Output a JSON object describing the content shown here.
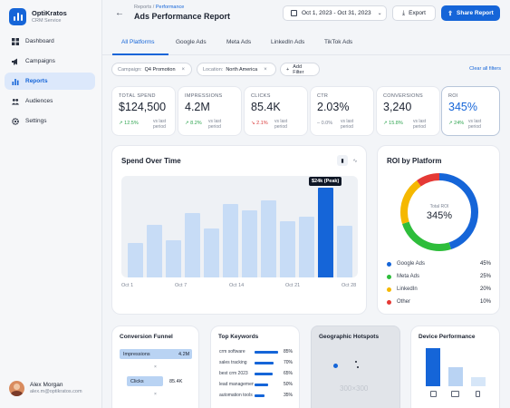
{
  "app": {
    "name": "OptiKratos",
    "subtitle": "CRM Service"
  },
  "sidebar": {
    "items": [
      {
        "label": "Dashboard",
        "icon": "dashboard-icon"
      },
      {
        "label": "Campaigns",
        "icon": "megaphone-icon"
      },
      {
        "label": "Reports",
        "icon": "bar-chart-icon",
        "active": true
      },
      {
        "label": "Audiences",
        "icon": "users-icon"
      },
      {
        "label": "Settings",
        "icon": "gear-icon"
      }
    ]
  },
  "user": {
    "name": "Alex Morgan",
    "email": "alex.m@optikratos.com"
  },
  "header": {
    "breadcrumb_root": "Reports",
    "breadcrumb_sep": "/",
    "breadcrumb_current": "Performance",
    "title": "Ads Performance Report",
    "date_range": "Oct 1, 2023 - Oct 31, 2023",
    "export_label": "Export",
    "share_label": "Share Report"
  },
  "tabs": [
    "All Platforms",
    "Google Ads",
    "Meta Ads",
    "LinkedIn Ads",
    "TikTok Ads"
  ],
  "filters": {
    "campaign_key": "Campaign:",
    "campaign_value": "Q4 Promotion",
    "location_key": "Location:",
    "location_value": "North America",
    "add_label": "Add Filter",
    "clear_label": "Clear all filters"
  },
  "kpis": [
    {
      "label": "TOTAL SPEND",
      "value": "$124,500",
      "delta": "12.5%",
      "trend": "up",
      "period": "vs last period"
    },
    {
      "label": "IMPRESSIONS",
      "value": "4.2M",
      "delta": "8.2%",
      "trend": "up",
      "period": "vs last period"
    },
    {
      "label": "CLICKS",
      "value": "85.4K",
      "delta": "2.1%",
      "trend": "down",
      "period": "vs last period"
    },
    {
      "label": "CTR",
      "value": "2.03%",
      "delta": "0.0%",
      "trend": "flat",
      "period": "vs last period"
    },
    {
      "label": "CONVERSIONS",
      "value": "3,240",
      "delta": "15.8%",
      "trend": "up",
      "period": "vs last period"
    },
    {
      "label": "ROI",
      "value": "345%",
      "delta": "24%",
      "trend": "up",
      "period": "vs last period"
    }
  ],
  "spend_panel": {
    "title": "Spend Over Time",
    "tooltip": "$24k (Peak)"
  },
  "chart_data": [
    {
      "type": "bar",
      "title": "Spend Over Time",
      "xticks": [
        "Oct 1",
        "Oct 7",
        "Oct 14",
        "Oct 21",
        "Oct 28"
      ],
      "values_relative_height": [
        0.34,
        0.52,
        0.37,
        0.63,
        0.48,
        0.72,
        0.66,
        0.76,
        0.55,
        0.6,
        0.88,
        0.51
      ],
      "peak_index": 10,
      "peak_label": "$24k (Peak)",
      "colors": {
        "bar": "#c7dcf6",
        "peak": "#1565d8"
      }
    },
    {
      "type": "pie",
      "title": "ROI by Platform",
      "center_label": "Total ROI",
      "center_value": "345%",
      "slices": [
        {
          "name": "Google Ads",
          "value": 45,
          "color": "#1565d8"
        },
        {
          "name": "Meta Ads",
          "value": 25,
          "color": "#2ebd3b"
        },
        {
          "name": "LinkedIn",
          "value": 20,
          "color": "#f5b800"
        },
        {
          "name": "Other",
          "value": 10,
          "color": "#e53935"
        }
      ]
    }
  ],
  "roi_panel": {
    "title": "ROI by Platform",
    "center_label": "Total ROI",
    "center_value": "345%",
    "legend": [
      {
        "name": "Google Ads",
        "pct": "45%"
      },
      {
        "name": "Meta Ads",
        "pct": "25%"
      },
      {
        "name": "LinkedIn",
        "pct": "20%"
      },
      {
        "name": "Other",
        "pct": "10%"
      }
    ]
  },
  "funnel": {
    "title": "Conversion Funnel",
    "steps": [
      {
        "label": "Impressions",
        "value": "4.2M"
      },
      {
        "label": "Clicks",
        "value": "85.4K"
      }
    ],
    "connector": "×"
  },
  "keywords": {
    "title": "Top Keywords",
    "items": [
      {
        "name": "crm software",
        "pct": "85%",
        "value": 85
      },
      {
        "name": "sales tracking",
        "pct": "70%",
        "value": 70
      },
      {
        "name": "best crm 2023",
        "pct": "65%",
        "value": 65
      },
      {
        "name": "lead management",
        "pct": "50%",
        "value": 50
      },
      {
        "name": "automation tools",
        "pct": "35%",
        "value": 35
      }
    ]
  },
  "geo": {
    "title": "Geographic Hotspots",
    "placeholder": "300×300"
  },
  "device": {
    "title": "Device Performance"
  }
}
